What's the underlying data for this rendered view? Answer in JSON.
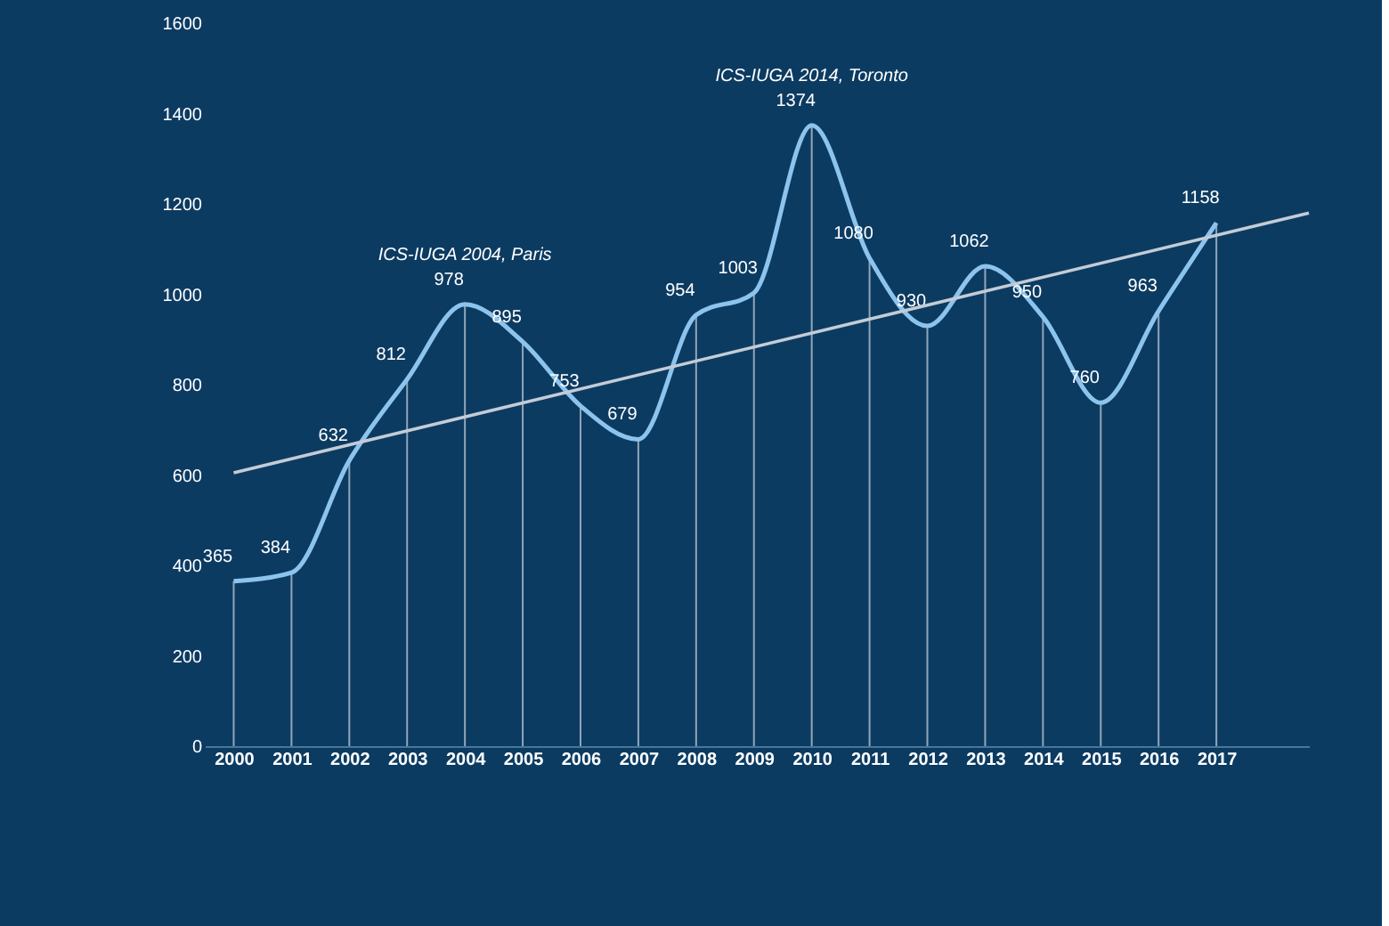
{
  "chart_data": {
    "type": "line",
    "x": [
      2000,
      2001,
      2002,
      2003,
      2004,
      2005,
      2006,
      2007,
      2008,
      2009,
      2010,
      2011,
      2012,
      2013,
      2014,
      2015,
      2016,
      2017
    ],
    "series": [
      {
        "color": "#8cc4ee",
        "values": [
          365,
          384,
          632,
          812,
          978,
          895,
          753,
          679,
          954,
          1003,
          1374,
          1080,
          930,
          1062,
          950,
          760,
          963,
          1158
        ],
        "value_labels": [
          "365",
          "384",
          "632",
          "812",
          "978",
          "895",
          "753",
          "679",
          "954",
          "1003",
          "1374",
          "1080",
          "930",
          "1062",
          "950",
          "760",
          "963",
          "1158"
        ]
      },
      {
        "color": "#c3ccd6",
        "x": [
          2000,
          2018.6
        ],
        "values": [
          605,
          1180
        ]
      }
    ],
    "annotations": [
      {
        "text": "ICS-IUGA 2004, Paris",
        "x": 2004,
        "y": 978
      },
      {
        "text": "ICS-IUGA 2014, Toronto",
        "x": 2010,
        "y": 1374
      }
    ],
    "xlim": [
      1999.5,
      2018.6
    ],
    "xticks": [
      2000,
      2001,
      2002,
      2003,
      2004,
      2005,
      2006,
      2007,
      2008,
      2009,
      2010,
      2011,
      2012,
      2013,
      2014,
      2015,
      2016,
      2017
    ],
    "ylim": [
      0,
      1600
    ],
    "yticks": [
      0,
      200,
      400,
      600,
      800,
      1000,
      1200,
      1400,
      1600
    ],
    "grid": "x",
    "marker": "none",
    "line_style": "solid"
  }
}
